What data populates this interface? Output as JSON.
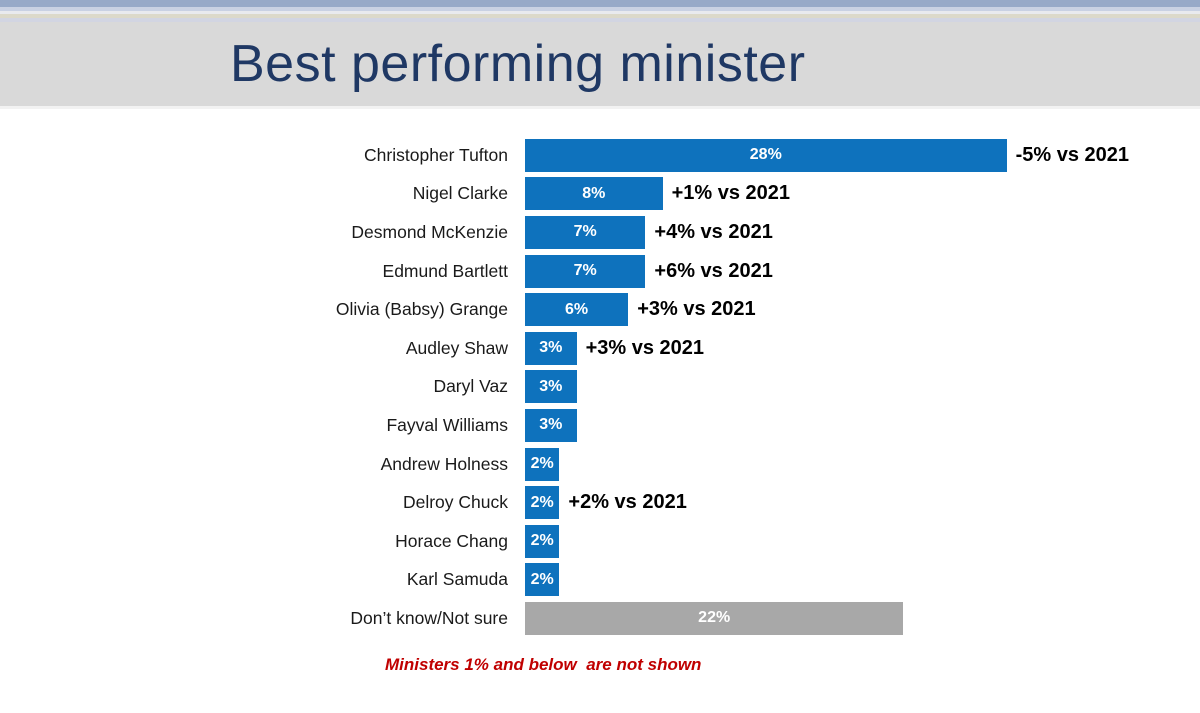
{
  "colors": {
    "bar_blue": "#0e72bd",
    "bar_gray": "#a8a8a8",
    "title_navy": "#1f3864",
    "footnote_red": "#c00000",
    "title_band_gray": "#d9d9d9"
  },
  "header": {
    "title": "Best performing minister"
  },
  "chart_data": {
    "type": "bar",
    "orientation": "horizontal",
    "title": "Best performing minister",
    "xlabel": "",
    "ylabel": "",
    "xlim": [
      0,
      30
    ],
    "grid": false,
    "legend": false,
    "categories": [
      "Christopher Tufton",
      "Nigel Clarke",
      "Desmond McKenzie",
      "Edmund Bartlett",
      "Olivia (Babsy) Grange",
      "Audley Shaw",
      "Daryl Vaz",
      "Fayval Williams",
      "Andrew Holness",
      "Delroy Chuck",
      "Horace Chang",
      "Karl Samuda",
      "Don’t know/Not sure"
    ],
    "values": [
      28,
      8,
      7,
      7,
      6,
      3,
      3,
      3,
      2,
      2,
      2,
      2,
      22
    ],
    "rows": [
      {
        "label": "Christopher Tufton",
        "value": 28,
        "value_label": "28%",
        "annotation": "-5% vs 2021",
        "color": "blue"
      },
      {
        "label": "Nigel Clarke",
        "value": 8,
        "value_label": "8%",
        "annotation": "+1% vs 2021",
        "color": "blue"
      },
      {
        "label": "Desmond McKenzie",
        "value": 7,
        "value_label": "7%",
        "annotation": "+4% vs 2021",
        "color": "blue"
      },
      {
        "label": "Edmund Bartlett",
        "value": 7,
        "value_label": "7%",
        "annotation": "+6% vs 2021",
        "color": "blue"
      },
      {
        "label": "Olivia (Babsy) Grange",
        "value": 6,
        "value_label": "6%",
        "annotation": "+3% vs 2021",
        "color": "blue"
      },
      {
        "label": "Audley Shaw",
        "value": 3,
        "value_label": "3%",
        "annotation": "+3% vs 2021",
        "color": "blue"
      },
      {
        "label": "Daryl Vaz",
        "value": 3,
        "value_label": "3%",
        "annotation": "",
        "color": "blue"
      },
      {
        "label": "Fayval Williams",
        "value": 3,
        "value_label": "3%",
        "annotation": "",
        "color": "blue"
      },
      {
        "label": "Andrew Holness",
        "value": 2,
        "value_label": "2%",
        "annotation": "",
        "color": "blue"
      },
      {
        "label": "Delroy Chuck",
        "value": 2,
        "value_label": "2%",
        "annotation": "+2% vs 2021",
        "color": "blue"
      },
      {
        "label": "Horace Chang",
        "value": 2,
        "value_label": "2%",
        "annotation": "",
        "color": "blue"
      },
      {
        "label": "Karl Samuda",
        "value": 2,
        "value_label": "2%",
        "annotation": "",
        "color": "blue"
      },
      {
        "label": "Don’t know/Not sure",
        "value": 22,
        "value_label": "22%",
        "annotation": "",
        "color": "gray"
      }
    ],
    "footnote": "Ministers 1% and below  are not shown"
  }
}
